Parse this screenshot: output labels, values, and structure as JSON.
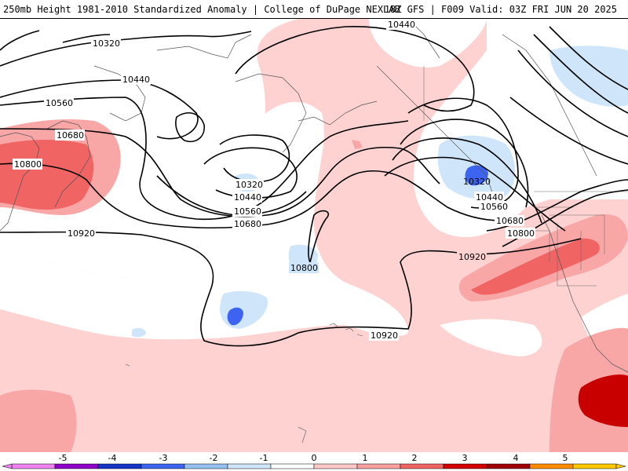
{
  "header": {
    "title": "250mb Height 1981-2010 Standardized Anomaly | College of DuPage NEXLAB",
    "run_info": "18Z GFS | F009 Valid: 03Z FRI JUN 20 2025"
  },
  "contour_labels": [
    {
      "id": "c10440-top",
      "text": "10440"
    },
    {
      "id": "c10320-top",
      "text": "10320"
    },
    {
      "id": "c10440-left",
      "text": "10440"
    },
    {
      "id": "c10560-left",
      "text": "10560"
    },
    {
      "id": "c10680-left",
      "text": "10680"
    },
    {
      "id": "c10800-left",
      "text": "10800"
    },
    {
      "id": "c10920-left",
      "text": "10920"
    },
    {
      "id": "c10320-mid",
      "text": "10320"
    },
    {
      "id": "c10440-mid",
      "text": "10440"
    },
    {
      "id": "c10560-mid",
      "text": "10560"
    },
    {
      "id": "c10680-mid",
      "text": "10680"
    },
    {
      "id": "c10800-mid",
      "text": "10800"
    },
    {
      "id": "c10920-bot",
      "text": "10920"
    },
    {
      "id": "c10320-right",
      "text": "10320"
    },
    {
      "id": "c10440-right",
      "text": "10440"
    },
    {
      "id": "c10560-right",
      "text": "10560"
    },
    {
      "id": "c10680-right",
      "text": "10680"
    },
    {
      "id": "c10800-right",
      "text": "10800"
    },
    {
      "id": "c10920-right",
      "text": "10920"
    }
  ],
  "colorbar": {
    "ticks": [
      "-5",
      "-4",
      "-3",
      "-2",
      "-1",
      "0",
      "1",
      "2",
      "3",
      "4",
      "5"
    ],
    "colors": [
      "#ee82ee",
      "#8e00c8",
      "#1434c8",
      "#3c64f0",
      "#96c0f0",
      "#cfe6fa",
      "#ffffff",
      "#ffc8c8",
      "#f8a0a0",
      "#f06464",
      "#d20000",
      "#a00000",
      "#ff8c00",
      "#ffc800"
    ]
  },
  "colors": {
    "neg_light": "#cfe6fa",
    "neg_mid": "#a8cdf4",
    "neg_strong": "#3c64f0",
    "pos_light": "#ffd2d2",
    "pos_mid": "#f8a6a6",
    "pos_strong": "#f06464",
    "pos_dark": "#c80000"
  }
}
